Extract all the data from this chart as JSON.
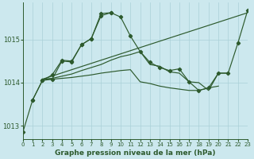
{
  "bg_color": "#cce8ee",
  "grid_color": "#aad0d8",
  "line_color": "#2d5a2d",
  "title": "Graphe pression niveau de la mer (hPa)",
  "xlim": [
    0,
    23
  ],
  "ylim": [
    1012.7,
    1015.85
  ],
  "yticks": [
    1013,
    1014,
    1015
  ],
  "xticks": [
    0,
    1,
    2,
    3,
    4,
    5,
    6,
    7,
    8,
    9,
    10,
    11,
    12,
    13,
    14,
    15,
    16,
    17,
    18,
    19,
    20,
    21,
    22,
    23
  ],
  "series": [
    {
      "x": [
        0,
        1,
        2,
        3,
        4,
        5,
        6,
        7,
        8,
        9,
        10,
        11,
        12,
        13,
        14,
        15,
        16,
        17,
        18,
        19,
        20,
        21,
        22,
        23
      ],
      "y": [
        1012.85,
        1013.6,
        1014.05,
        1014.08,
        1014.5,
        1014.48,
        1014.88,
        1015.02,
        1015.55,
        1015.62,
        1015.52,
        1015.08,
        1014.72,
        1014.47,
        1014.35,
        1014.28,
        1014.32,
        1014.02,
        1013.82,
        1013.88,
        1014.22,
        1014.22,
        1014.92,
        1015.68
      ],
      "marker": true,
      "linewidth": 0.9
    },
    {
      "x": [
        1,
        2,
        3,
        4,
        5,
        6,
        7,
        8,
        9
      ],
      "y": [
        1013.6,
        1014.05,
        1014.18,
        1014.52,
        1014.5,
        1014.88,
        1015.02,
        1015.6,
        1015.62
      ],
      "marker": true,
      "linewidth": 0.9
    },
    {
      "x": [
        2,
        3,
        4,
        5,
        6,
        7,
        8,
        9,
        10,
        11,
        12,
        13,
        14,
        15,
        16,
        17,
        18,
        19,
        20,
        21,
        22,
        23
      ],
      "y": [
        1014.08,
        1014.1,
        1014.15,
        1014.2,
        1014.28,
        1014.35,
        1014.42,
        1014.52,
        1014.6,
        1014.65,
        1014.72,
        1014.42,
        1014.38,
        1014.25,
        1014.22,
        1014.02,
        1014.0,
        1013.82,
        1014.22,
        1014.22,
        null,
        null
      ],
      "marker": false,
      "linewidth": 0.9
    },
    {
      "x": [
        2,
        3,
        4,
        5,
        6,
        7,
        8,
        9,
        10,
        11,
        12,
        13,
        14,
        15,
        16,
        17,
        18,
        19,
        20,
        21,
        22,
        23
      ],
      "y": [
        1014.08,
        1014.08,
        1014.1,
        1014.12,
        1014.15,
        1014.18,
        1014.22,
        1014.25,
        1014.28,
        1014.3,
        1014.02,
        1013.98,
        1013.92,
        1013.88,
        1013.85,
        1013.82,
        1013.82,
        1013.88,
        1013.92,
        null,
        null,
        null
      ],
      "marker": false,
      "linewidth": 0.9
    }
  ],
  "series3_diagonal": {
    "x": [
      2,
      23
    ],
    "y": [
      1014.08,
      1015.62
    ]
  }
}
